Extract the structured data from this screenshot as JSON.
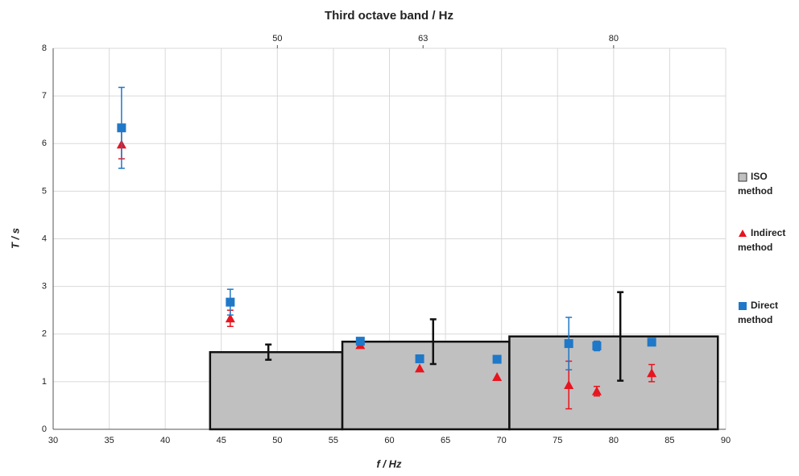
{
  "chart_data": {
    "type": "bar+scatter",
    "title": "Third octave band / Hz",
    "xlabel": "f / Hz",
    "ylabel": "T / s",
    "xlim": [
      30,
      90
    ],
    "xticks": [
      30,
      35,
      40,
      45,
      50,
      55,
      60,
      65,
      70,
      75,
      80,
      85,
      90
    ],
    "ylim": [
      0,
      8
    ],
    "yticks": [
      0,
      1,
      2,
      3,
      4,
      5,
      6,
      7,
      8
    ],
    "x2ticks": [
      50,
      63,
      80
    ],
    "grid": true,
    "series": [
      {
        "name": "ISO method",
        "type": "bar",
        "color": "#c0c0c0",
        "bins": [
          44,
          55.8,
          70.7,
          89.3
        ],
        "values": [
          1.62,
          1.84,
          1.95
        ],
        "error_x": [
          49.2,
          63.9,
          80.6
        ],
        "errors": [
          0.16,
          0.47,
          0.93
        ]
      },
      {
        "name": "Indirect method",
        "type": "scatter",
        "marker": "triangle",
        "color": "#e8141e",
        "x": [
          36.1,
          45.8,
          57.4,
          62.7,
          69.6,
          76.0,
          78.5,
          83.4
        ],
        "values": [
          5.98,
          2.33,
          1.77,
          1.28,
          1.1,
          0.93,
          0.8,
          1.18
        ],
        "errors": [
          0.3,
          0.17,
          null,
          null,
          null,
          0.5,
          0.1,
          0.18
        ]
      },
      {
        "name": "Direct method",
        "type": "scatter",
        "marker": "square",
        "color": "#1f78c8",
        "x": [
          36.1,
          45.8,
          57.4,
          62.7,
          69.6,
          76.0,
          78.5,
          83.4
        ],
        "values": [
          6.33,
          2.67,
          1.85,
          1.48,
          1.47,
          1.8,
          1.75,
          1.83
        ],
        "errors": [
          0.85,
          0.27,
          null,
          null,
          null,
          0.55,
          0.1,
          null
        ]
      }
    ]
  }
}
